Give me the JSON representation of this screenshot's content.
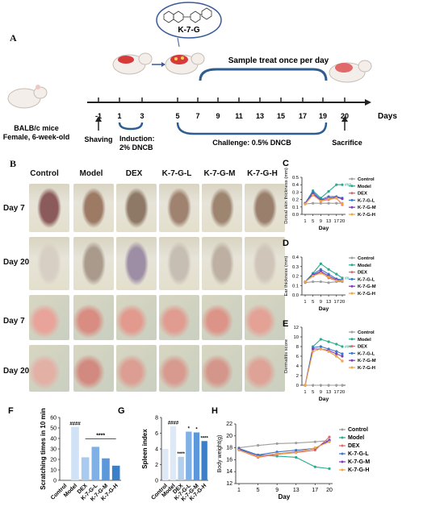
{
  "panel_A": {
    "letter": "A",
    "compound": "K-7-G",
    "top_label": "Sample treat once per day",
    "mice_label_1": "BALB/c mice",
    "mice_label_2": "Female, 6-week-old",
    "days": [
      "-1",
      "1",
      "3",
      "5",
      "7",
      "9",
      "11",
      "13",
      "15",
      "17",
      "19",
      "20"
    ],
    "days_axis_label": "Days",
    "shaving": "Shaving",
    "induction_1": "Induction:",
    "induction_2": "2% DNCB",
    "challenge": "Challenge: 0.5% DNCB",
    "sacrifice": "Sacrifice"
  },
  "panel_B": {
    "letter": "B",
    "groups": [
      "Control",
      "Model",
      "DEX",
      "K-7-G-L",
      "K-7-G-M",
      "K-7-G-H"
    ],
    "rows": [
      "Day 7",
      "Day 20",
      "Day 7",
      "Day 20"
    ]
  },
  "colors": {
    "Control": "#9e9e9e",
    "Model": "#2bab8c",
    "DEX": "#e06a6a",
    "K-7-G-L": "#3a78c9",
    "K-7-G-M": "#7d3bbf",
    "K-7-G-H": "#f0a64a"
  },
  "chart_data": [
    {
      "id": "C",
      "letter": "C",
      "type": "line",
      "x": [
        1,
        5,
        9,
        13,
        17,
        20
      ],
      "xlabel": "Day",
      "ylabel": "Dorsal skin thickness (mm)",
      "ylim": [
        0.0,
        0.5
      ],
      "yticks": [
        "0.0",
        "0.1",
        "0.2",
        "0.3",
        "0.4",
        "0.5"
      ],
      "annotation": "###",
      "series": [
        {
          "name": "Control",
          "values": [
            0.14,
            0.15,
            0.15,
            0.15,
            0.15,
            0.15
          ]
        },
        {
          "name": "Model",
          "values": [
            0.15,
            0.32,
            0.22,
            0.31,
            0.4,
            0.4
          ]
        },
        {
          "name": "DEX",
          "values": [
            0.14,
            0.27,
            0.18,
            0.2,
            0.22,
            0.13
          ]
        },
        {
          "name": "K-7-G-L",
          "values": [
            0.15,
            0.3,
            0.2,
            0.24,
            0.24,
            0.22
          ]
        },
        {
          "name": "K-7-G-M",
          "values": [
            0.15,
            0.28,
            0.19,
            0.22,
            0.23,
            0.21
          ]
        },
        {
          "name": "K-7-G-H",
          "values": [
            0.14,
            0.26,
            0.18,
            0.21,
            0.22,
            0.14
          ]
        }
      ]
    },
    {
      "id": "D",
      "letter": "D",
      "type": "line",
      "x": [
        1,
        5,
        9,
        13,
        17,
        20
      ],
      "xlabel": "Day",
      "ylabel": "Ear thickness (mm)",
      "ylim": [
        0.0,
        0.4
      ],
      "yticks": [
        "0.0",
        "0.1",
        "0.2",
        "0.3",
        "0.4"
      ],
      "annotation": "##",
      "series": [
        {
          "name": "Control",
          "values": [
            0.13,
            0.14,
            0.14,
            0.13,
            0.14,
            0.14
          ]
        },
        {
          "name": "Model",
          "values": [
            0.14,
            0.23,
            0.33,
            0.27,
            0.22,
            0.18
          ]
        },
        {
          "name": "DEX",
          "values": [
            0.14,
            0.2,
            0.24,
            0.18,
            0.15,
            0.15
          ]
        },
        {
          "name": "K-7-G-L",
          "values": [
            0.14,
            0.22,
            0.27,
            0.22,
            0.17,
            0.16
          ]
        },
        {
          "name": "K-7-G-M",
          "values": [
            0.14,
            0.21,
            0.25,
            0.2,
            0.16,
            0.15
          ]
        },
        {
          "name": "K-7-G-H",
          "values": [
            0.14,
            0.2,
            0.23,
            0.19,
            0.15,
            0.15
          ]
        }
      ]
    },
    {
      "id": "E",
      "letter": "E",
      "type": "line",
      "x": [
        1,
        5,
        9,
        13,
        17,
        20
      ],
      "xlabel": "Day",
      "ylabel": "Dermatitis score",
      "ylim": [
        0,
        12
      ],
      "yticks": [
        "0",
        "2",
        "4",
        "6",
        "8",
        "10",
        "12"
      ],
      "annotation": "###",
      "series": [
        {
          "name": "Control",
          "values": [
            0,
            0,
            0,
            0,
            0,
            0
          ]
        },
        {
          "name": "Model",
          "values": [
            0,
            8,
            9.5,
            9,
            8.5,
            8
          ]
        },
        {
          "name": "DEX",
          "values": [
            0,
            7.5,
            7.5,
            7,
            6,
            5
          ]
        },
        {
          "name": "K-7-G-L",
          "values": [
            0,
            7.8,
            8,
            7.5,
            7,
            6.5
          ]
        },
        {
          "name": "K-7-G-M",
          "values": [
            0,
            7.5,
            7.5,
            7.2,
            6.5,
            6
          ]
        },
        {
          "name": "K-7-G-H",
          "values": [
            0,
            7,
            7.5,
            7,
            6,
            5
          ]
        }
      ]
    },
    {
      "id": "F",
      "letter": "F",
      "type": "bar",
      "categories": [
        "Control",
        "Model",
        "DEX",
        "K-7-G-L",
        "K-7-G-M",
        "K-7-G-H"
      ],
      "values": [
        0,
        51,
        22,
        32,
        21,
        14
      ],
      "ylabel": "Scratching times in 10 min",
      "ylim": [
        0,
        60
      ],
      "yticks": [
        "0",
        "10",
        "20",
        "30",
        "40",
        "50",
        "60"
      ],
      "bar_colors": [
        "#d0e2f5",
        "#d0e2f5",
        "#a9cbef",
        "#7fb1e6",
        "#5a98db",
        "#3b7fc9"
      ],
      "sig_top": "####",
      "sig_bracket": "****"
    },
    {
      "id": "G",
      "letter": "G",
      "type": "bar",
      "categories": [
        "Control",
        "Model",
        "DEX",
        "K-7-G-L",
        "K-7-G-M",
        "K-7-G-H"
      ],
      "values": [
        4,
        6.9,
        3,
        6.2,
        6.1,
        5
      ],
      "ylabel": "Spleen index",
      "ylim": [
        0,
        8
      ],
      "yticks": [
        "0",
        "2",
        "4",
        "6",
        "8"
      ],
      "bar_colors": [
        "#dde9f6",
        "#dde9f6",
        "#b3cfee",
        "#7fb1e6",
        "#5a98db",
        "#3b7fc9"
      ],
      "sig_labels": [
        "",
        "####",
        "****",
        "*",
        "*",
        "****"
      ]
    },
    {
      "id": "H",
      "letter": "H",
      "type": "line",
      "x": [
        1,
        5,
        9,
        13,
        17,
        20
      ],
      "xlabel": "Day",
      "ylabel": "Body weight(g)",
      "ylim": [
        12,
        22
      ],
      "yticks": [
        "12",
        "14",
        "16",
        "18",
        "20",
        "22"
      ],
      "series": [
        {
          "name": "Control",
          "values": [
            18,
            18.4,
            18.7,
            18.8,
            19,
            19.2
          ]
        },
        {
          "name": "Model",
          "values": [
            17.8,
            16.8,
            16.6,
            16.4,
            14.8,
            14.5
          ]
        },
        {
          "name": "DEX",
          "values": [
            17.6,
            16.4,
            16.9,
            17.2,
            17.6,
            19.8
          ]
        },
        {
          "name": "K-7-G-L",
          "values": [
            17.9,
            16.8,
            17.3,
            17.6,
            17.9,
            19.2
          ]
        },
        {
          "name": "K-7-G-M",
          "values": [
            17.7,
            16.6,
            17.0,
            17.3,
            17.9,
            19.3
          ]
        },
        {
          "name": "K-7-G-H",
          "values": [
            17.6,
            16.5,
            17.0,
            17.2,
            18.0,
            19.0
          ]
        }
      ]
    }
  ]
}
